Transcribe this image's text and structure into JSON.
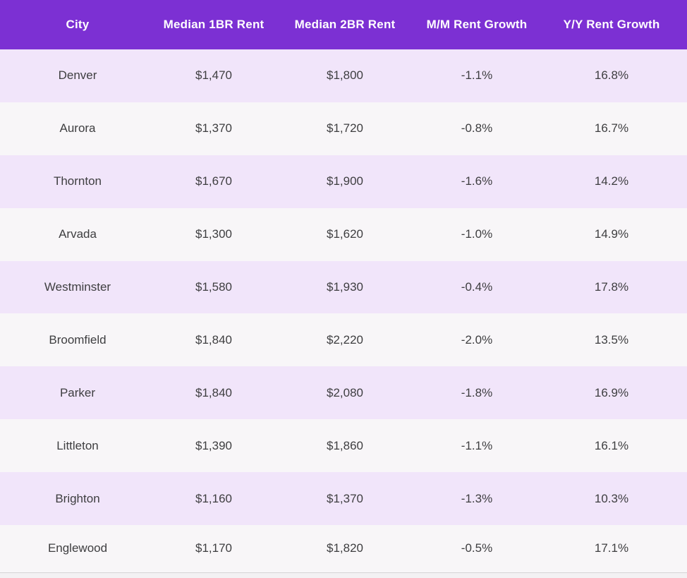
{
  "chart_data": {
    "type": "table",
    "columns": [
      "City",
      "Median 1BR Rent",
      "Median 2BR Rent",
      "M/M Rent Growth",
      "Y/Y Rent Growth"
    ],
    "rows": [
      [
        "Denver",
        "$1,470",
        "$1,800",
        "-1.1%",
        "16.8%"
      ],
      [
        "Aurora",
        "$1,370",
        "$1,720",
        "-0.8%",
        "16.7%"
      ],
      [
        "Thornton",
        "$1,670",
        "$1,900",
        "-1.6%",
        "14.2%"
      ],
      [
        "Arvada",
        "$1,300",
        "$1,620",
        "-1.0%",
        "14.9%"
      ],
      [
        "Westminster",
        "$1,580",
        "$1,930",
        "-0.4%",
        "17.8%"
      ],
      [
        "Broomfield",
        "$1,840",
        "$2,220",
        "-2.0%",
        "13.5%"
      ],
      [
        "Parker",
        "$1,840",
        "$2,080",
        "-1.8%",
        "16.9%"
      ],
      [
        "Littleton",
        "$1,390",
        "$1,860",
        "-1.1%",
        "16.1%"
      ],
      [
        "Brighton",
        "$1,160",
        "$1,370",
        "-1.3%",
        "10.3%"
      ],
      [
        "Englewood",
        "$1,170",
        "$1,820",
        "-0.5%",
        "17.1%"
      ]
    ],
    "layout": {
      "legend": "none",
      "grid": "off",
      "row_striping": "odd-rows-lavender"
    }
  },
  "style": {
    "header_bg": "#7C30D3",
    "header_text": "#FFFFFF",
    "row_alt": "#F1E5FA",
    "row_base": "#F8F6F8",
    "cell_text": "#3E3E40",
    "border_color": "#D6D3D6",
    "page_bg": "#F3F1F3"
  }
}
